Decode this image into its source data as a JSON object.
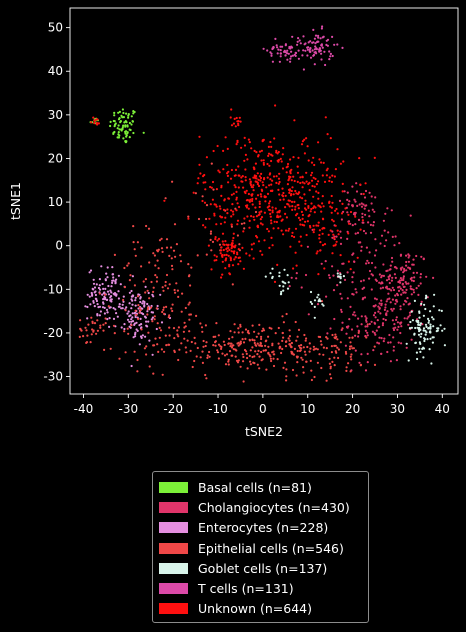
{
  "chart_data": {
    "type": "scatter",
    "title": "",
    "xlabel": "tSNE2",
    "ylabel": "tSNE1",
    "xlim": [
      -43,
      43.5
    ],
    "ylim": [
      -34,
      54.5
    ],
    "xticks": [
      -40,
      -30,
      -20,
      -10,
      0,
      10,
      20,
      30,
      40
    ],
    "yticks": [
      -30,
      -20,
      -10,
      0,
      10,
      20,
      30,
      40,
      50
    ],
    "grid": false,
    "legend_position": "bottom-center",
    "series": [
      {
        "name": "Basal cells (n=81)",
        "color": "#7cf038",
        "count": 81,
        "clusters": [
          {
            "cx": -31,
            "cy": 27.5,
            "sx": 1.6,
            "sy": 2.2,
            "n": 73
          },
          {
            "cx": -37.5,
            "cy": 28.5,
            "sx": 0.5,
            "sy": 0.4,
            "n": 8
          }
        ]
      },
      {
        "name": "Cholangiocytes (n=430)",
        "color": "#e0356a",
        "count": 430,
        "clusters": [
          {
            "cx": 31,
            "cy": -8,
            "sx": 3,
            "sy": 4,
            "n": 120
          },
          {
            "cx": 26,
            "cy": -17,
            "sx": 4,
            "sy": 5,
            "n": 150
          },
          {
            "cx": 20,
            "cy": -5,
            "sx": 6,
            "sy": 6,
            "n": 100
          },
          {
            "cx": 22,
            "cy": 8,
            "sx": 3,
            "sy": 3,
            "n": 60
          }
        ]
      },
      {
        "name": "Enterocytes (n=228)",
        "color": "#e58fe0",
        "count": 228,
        "clusters": [
          {
            "cx": -35,
            "cy": -11,
            "sx": 2,
            "sy": 3,
            "n": 110
          },
          {
            "cx": -28,
            "cy": -16,
            "sx": 2.5,
            "sy": 3,
            "n": 118
          }
        ]
      },
      {
        "name": "Epithelial cells (n=546)",
        "color": "#f04848",
        "count": 546,
        "clusters": [
          {
            "cx": -5,
            "cy": -23,
            "sx": 11,
            "sy": 3,
            "n": 260
          },
          {
            "cx": -23,
            "cy": -10,
            "sx": 5,
            "sy": 7,
            "n": 120
          },
          {
            "cx": 12,
            "cy": -24,
            "sx": 8,
            "sy": 3,
            "n": 100
          },
          {
            "cx": -38,
            "cy": -19,
            "sx": 1.5,
            "sy": 1.5,
            "n": 30
          },
          {
            "cx": -10,
            "cy": 5,
            "sx": 5,
            "sy": 6,
            "n": 36
          }
        ]
      },
      {
        "name": "Goblet cells (n=137)",
        "color": "#d8f4ea",
        "count": 137,
        "clusters": [
          {
            "cx": 36,
            "cy": -19,
            "sx": 2,
            "sy": 3,
            "n": 95
          },
          {
            "cx": 4,
            "cy": -8,
            "sx": 1.5,
            "sy": 1.5,
            "n": 20
          },
          {
            "cx": 12,
            "cy": -13,
            "sx": 1,
            "sy": 1.5,
            "n": 14
          },
          {
            "cx": 17,
            "cy": -7.5,
            "sx": 0.6,
            "sy": 0.8,
            "n": 8
          }
        ]
      },
      {
        "name": "T cells (n=131)",
        "color": "#dc4aa8",
        "count": 131,
        "clusters": [
          {
            "cx": 5,
            "cy": 45,
            "sx": 2,
            "sy": 1.6,
            "n": 55
          },
          {
            "cx": 12,
            "cy": 45.5,
            "sx": 2,
            "sy": 1.8,
            "n": 76
          }
        ]
      },
      {
        "name": "Unknown (n=644)",
        "color": "#ff1010",
        "count": 644,
        "clusters": [
          {
            "cx": 2,
            "cy": 12,
            "sx": 8,
            "sy": 7,
            "n": 520
          },
          {
            "cx": -8,
            "cy": -2,
            "sx": 2,
            "sy": 2,
            "n": 60
          },
          {
            "cx": -5,
            "cy": 28.5,
            "sx": 0.7,
            "sy": 0.5,
            "n": 10
          },
          {
            "cx": -37.5,
            "cy": 28.5,
            "sx": 0.5,
            "sy": 0.4,
            "n": 10
          },
          {
            "cx": 15,
            "cy": 5,
            "sx": 4,
            "sy": 4,
            "n": 44
          }
        ]
      }
    ]
  }
}
